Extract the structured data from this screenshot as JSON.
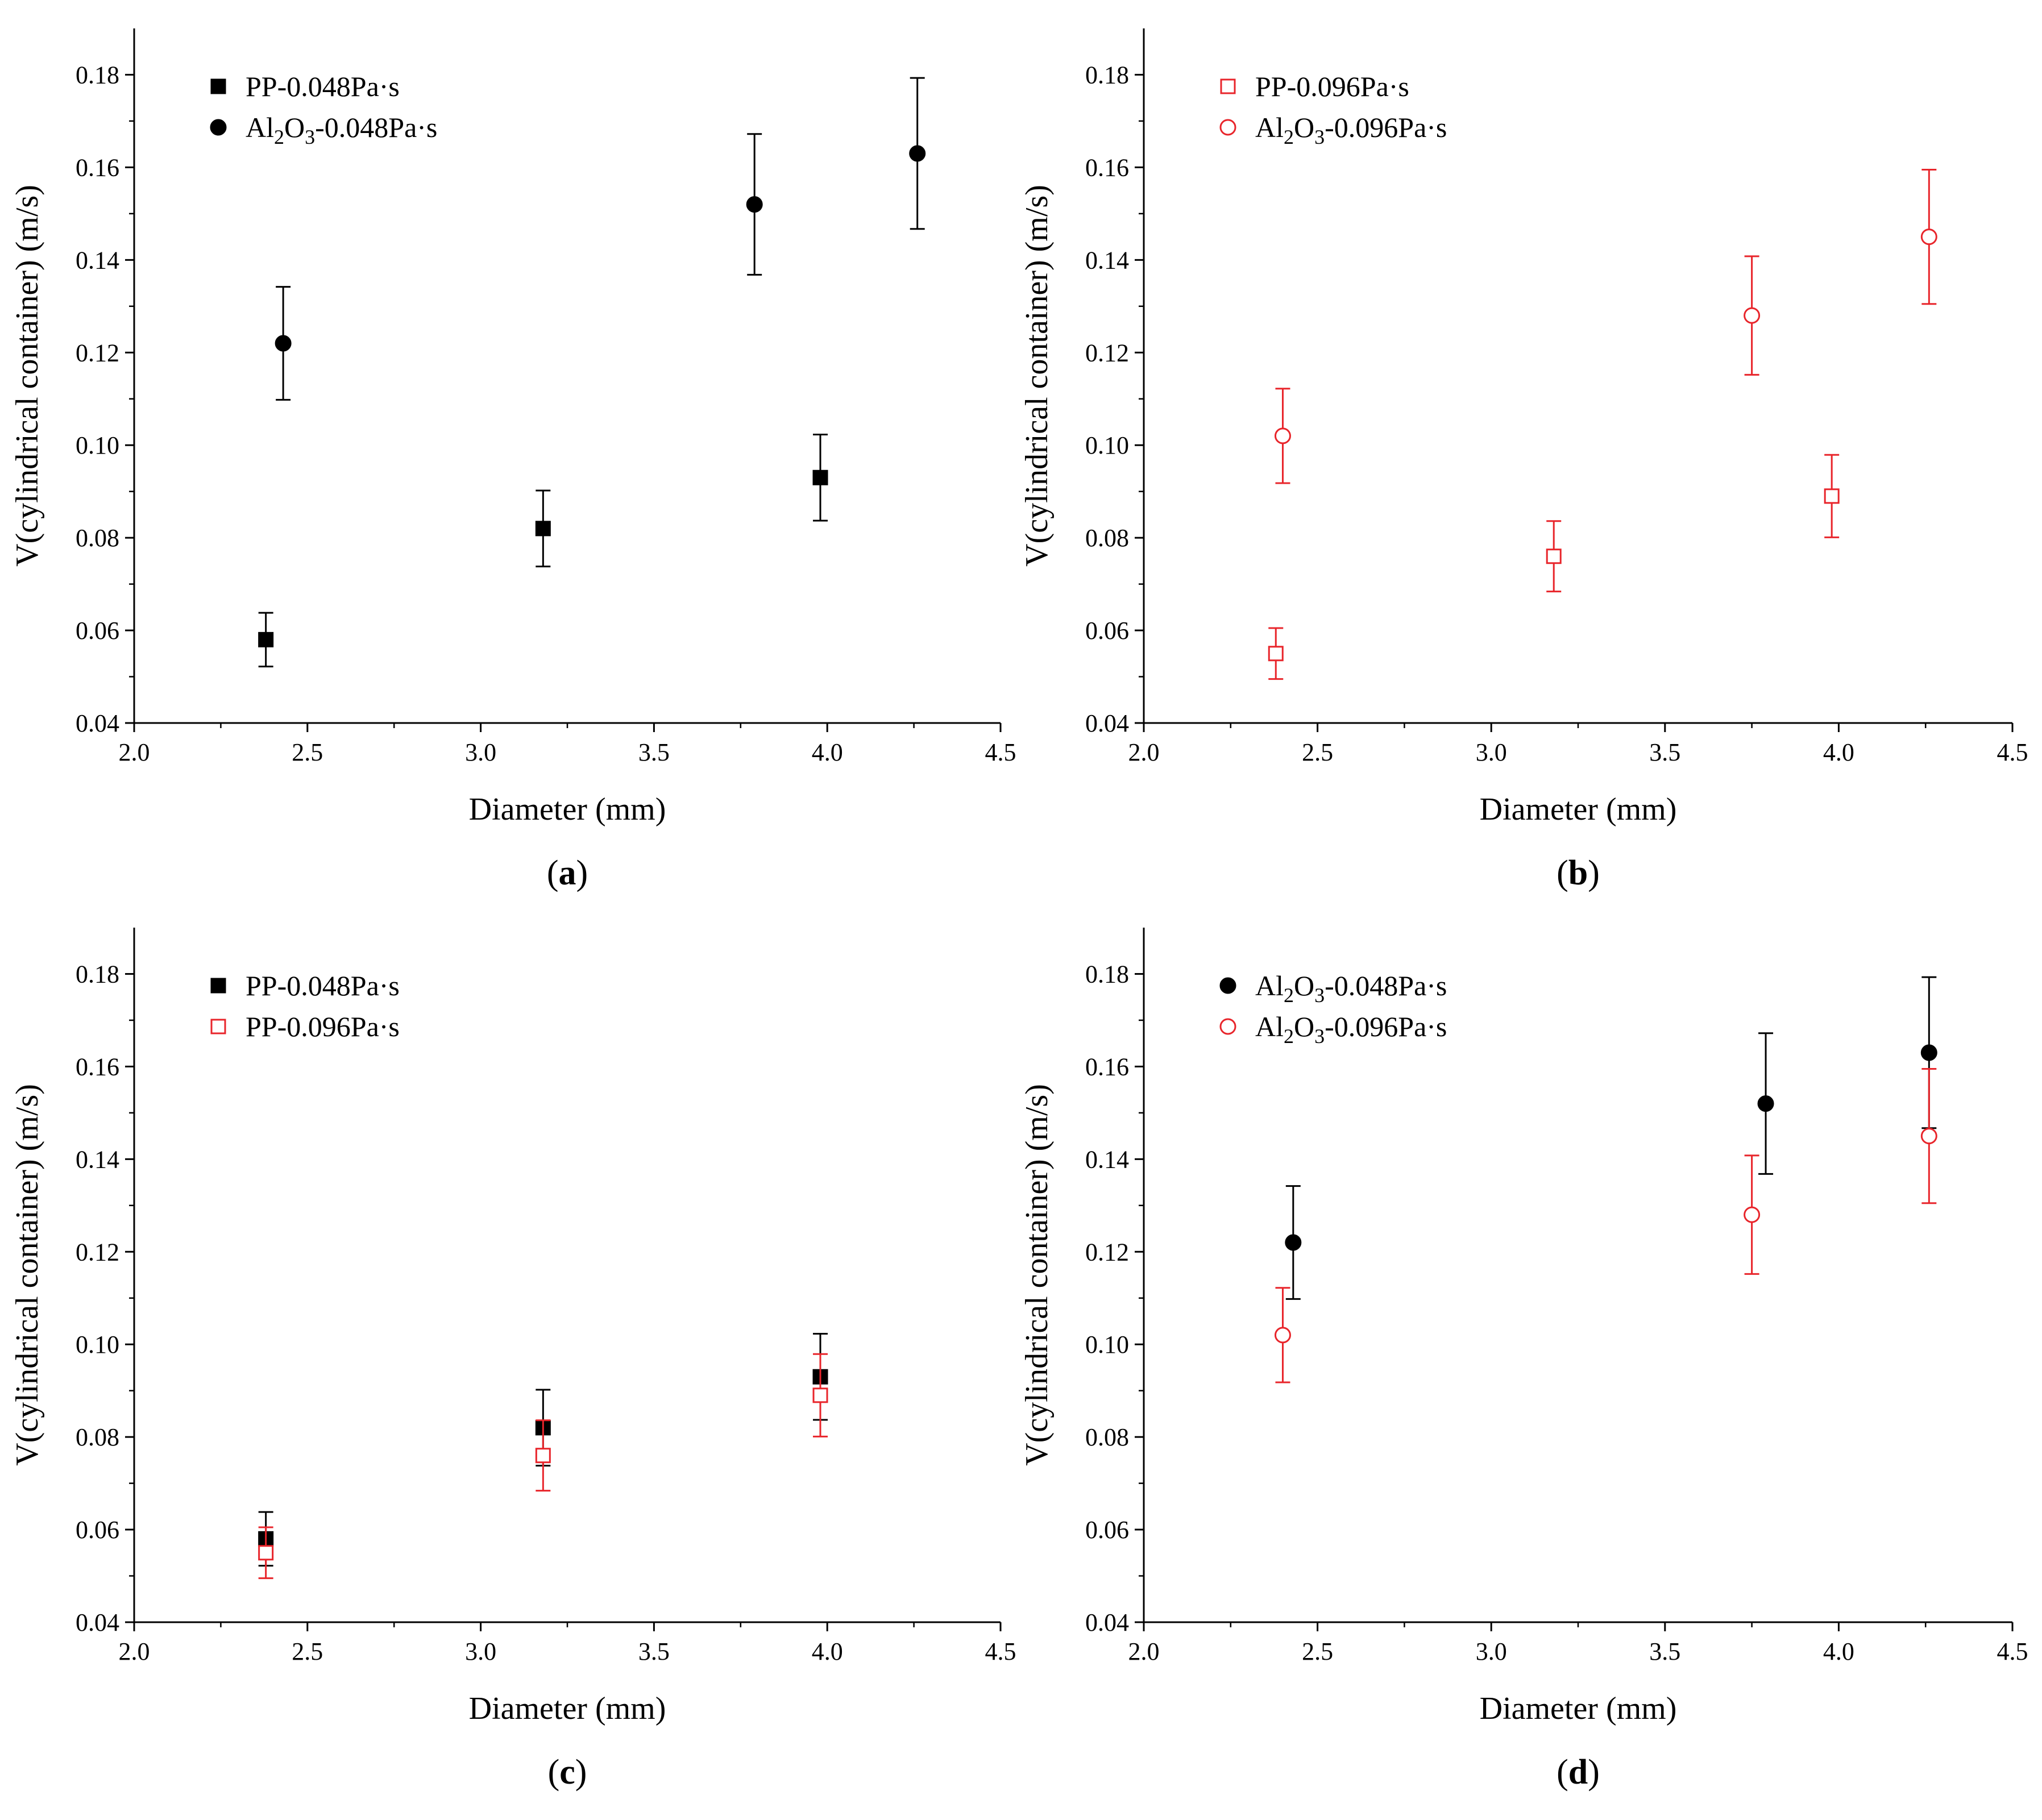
{
  "figure": {
    "panels": [
      {
        "id": "a",
        "label_prefix": "(",
        "label": "a",
        "label_suffix": ")"
      },
      {
        "id": "b",
        "label_prefix": "(",
        "label": "b",
        "label_suffix": ")"
      },
      {
        "id": "c",
        "label_prefix": "(",
        "label": "c",
        "label_suffix": ")"
      },
      {
        "id": "d",
        "label_prefix": "(",
        "label": "d",
        "label_suffix": ")"
      }
    ]
  },
  "colors": {
    "black": "#000000",
    "red": "#e8252b"
  },
  "chart_data": [
    {
      "type": "scatter",
      "panel": "a",
      "xlabel": "Diameter (mm)",
      "ylabel": "V(cylindrical container) (m/s)",
      "xlim": [
        2.0,
        4.5
      ],
      "ylim": [
        0.04,
        0.19
      ],
      "xticks": [
        "2.0",
        "2.5",
        "3.0",
        "3.5",
        "4.0",
        "4.5"
      ],
      "yticks": [
        "0.04",
        "0.06",
        "0.08",
        "0.10",
        "0.12",
        "0.14",
        "0.16",
        "0.18"
      ],
      "legend_position": "top-left",
      "series": [
        {
          "name": "PP-0.048Pa·s",
          "legend_parts": [
            "PP-0.048Pa·s"
          ],
          "marker": "square",
          "filled": true,
          "color": "#000000",
          "x": [
            2.38,
            3.18,
            3.98
          ],
          "y": [
            0.058,
            0.082,
            0.093
          ],
          "err": [
            0.0058,
            0.0082,
            0.0093
          ]
        },
        {
          "name": "Al2O3-0.048Pa·s",
          "legend_parts": [
            "Al",
            "2",
            "O",
            "3",
            "-0.048Pa·s"
          ],
          "marker": "circle",
          "filled": true,
          "color": "#000000",
          "x": [
            2.43,
            3.79,
            4.26
          ],
          "y": [
            0.122,
            0.152,
            0.163
          ],
          "err": [
            0.0122,
            0.0152,
            0.0163
          ]
        }
      ]
    },
    {
      "type": "scatter",
      "panel": "b",
      "xlabel": "Diameter (mm)",
      "ylabel": "V(cylindrical container) (m/s)",
      "xlim": [
        2.0,
        4.5
      ],
      "ylim": [
        0.04,
        0.19
      ],
      "xticks": [
        "2.0",
        "2.5",
        "3.0",
        "3.5",
        "4.0",
        "4.5"
      ],
      "yticks": [
        "0.04",
        "0.06",
        "0.08",
        "0.10",
        "0.12",
        "0.14",
        "0.16",
        "0.18"
      ],
      "legend_position": "top-left",
      "series": [
        {
          "name": "PP-0.096Pa·s",
          "legend_parts": [
            "PP-0.096Pa·s"
          ],
          "marker": "square",
          "filled": false,
          "color": "#e8252b",
          "x": [
            2.38,
            3.18,
            3.98
          ],
          "y": [
            0.055,
            0.076,
            0.089
          ],
          "err": [
            0.0055,
            0.0076,
            0.0089
          ]
        },
        {
          "name": "Al2O3-0.096Pa·s",
          "legend_parts": [
            "Al",
            "2",
            "O",
            "3",
            "-0.096Pa·s"
          ],
          "marker": "circle",
          "filled": false,
          "color": "#e8252b",
          "x": [
            2.4,
            3.75,
            4.26
          ],
          "y": [
            0.102,
            0.128,
            0.145
          ],
          "err": [
            0.0102,
            0.0128,
            0.0145
          ]
        }
      ]
    },
    {
      "type": "scatter",
      "panel": "c",
      "xlabel": "Diameter (mm)",
      "ylabel": "V(cylindrical container) (m/s)",
      "xlim": [
        2.0,
        4.5
      ],
      "ylim": [
        0.04,
        0.19
      ],
      "xticks": [
        "2.0",
        "2.5",
        "3.0",
        "3.5",
        "4.0",
        "4.5"
      ],
      "yticks": [
        "0.04",
        "0.06",
        "0.08",
        "0.10",
        "0.12",
        "0.14",
        "0.16",
        "0.18"
      ],
      "legend_position": "top-left",
      "series": [
        {
          "name": "PP-0.048Pa·s",
          "legend_parts": [
            "PP-0.048Pa·s"
          ],
          "marker": "square",
          "filled": true,
          "color": "#000000",
          "x": [
            2.38,
            3.18,
            3.98
          ],
          "y": [
            0.058,
            0.082,
            0.093
          ],
          "err": [
            0.0058,
            0.0082,
            0.0093
          ]
        },
        {
          "name": "PP-0.096Pa·s",
          "legend_parts": [
            "PP-0.096Pa·s"
          ],
          "marker": "square",
          "filled": false,
          "color": "#e8252b",
          "x": [
            2.38,
            3.18,
            3.98
          ],
          "y": [
            0.055,
            0.076,
            0.089
          ],
          "err": [
            0.0055,
            0.0076,
            0.0089
          ]
        }
      ]
    },
    {
      "type": "scatter",
      "panel": "d",
      "xlabel": "Diameter (mm)",
      "ylabel": "V(cylindrical container) (m/s)",
      "xlim": [
        2.0,
        4.5
      ],
      "ylim": [
        0.04,
        0.19
      ],
      "xticks": [
        "2.0",
        "2.5",
        "3.0",
        "3.5",
        "4.0",
        "4.5"
      ],
      "yticks": [
        "0.04",
        "0.06",
        "0.08",
        "0.10",
        "0.12",
        "0.14",
        "0.16",
        "0.18"
      ],
      "legend_position": "top-left",
      "series": [
        {
          "name": "Al2O3-0.048Pa·s",
          "legend_parts": [
            "Al",
            "2",
            "O",
            "3",
            "-0.048Pa·s"
          ],
          "marker": "circle",
          "filled": true,
          "color": "#000000",
          "x": [
            2.43,
            3.79,
            4.26
          ],
          "y": [
            0.122,
            0.152,
            0.163
          ],
          "err": [
            0.0122,
            0.0152,
            0.0163
          ]
        },
        {
          "name": "Al2O3-0.096Pa·s",
          "legend_parts": [
            "Al",
            "2",
            "O",
            "3",
            "-0.096Pa·s"
          ],
          "marker": "circle",
          "filled": false,
          "color": "#e8252b",
          "x": [
            2.4,
            3.75,
            4.26
          ],
          "y": [
            0.102,
            0.128,
            0.145
          ],
          "err": [
            0.0102,
            0.0128,
            0.0145
          ]
        }
      ]
    }
  ]
}
